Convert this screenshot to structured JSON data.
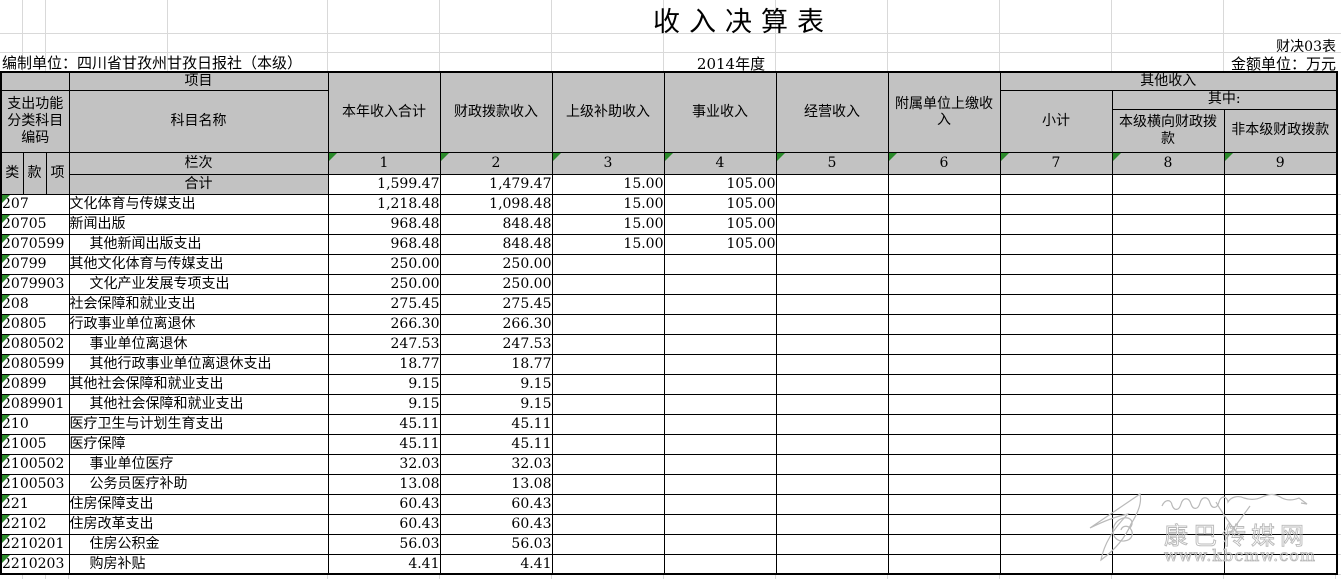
{
  "meta": {
    "title": "收入决算表",
    "form_no": "财决03表",
    "prepared_by": "编制单位：四川省甘孜州甘孜日报社（本级）",
    "year": "2014年度",
    "amount_unit": "金额单位：万元"
  },
  "header": {
    "project": "项目",
    "func_code": "支出功能分类科目编码",
    "subject": "科目名称",
    "income_cols": [
      "本年收入合计",
      "财政拨款收入",
      "上级补助收入",
      "事业收入",
      "经营收入",
      "附属单位上缴收入"
    ],
    "other_income": "其他收入",
    "among": "其中:",
    "subtotal": "小计",
    "lateral": "本级横向财政拨款",
    "nonlocal": "非本级财政拨款",
    "row_label": "栏次",
    "cls": "类",
    "sec": "款",
    "itm": "项",
    "col_nums": [
      "1",
      "2",
      "3",
      "4",
      "5",
      "6",
      "7",
      "8",
      "9"
    ],
    "total_label": "合计"
  },
  "totals": [
    "1,599.47",
    "1,479.47",
    "15.00",
    "105.00",
    "",
    "",
    "",
    "",
    ""
  ],
  "rows": [
    {
      "code": "207",
      "name": "文化体育与传媒支出",
      "indent": false,
      "values": [
        "1,218.48",
        "1,098.48",
        "15.00",
        "105.00",
        "",
        "",
        "",
        "",
        ""
      ]
    },
    {
      "code": "20705",
      "name": "新闻出版",
      "indent": false,
      "values": [
        "968.48",
        "848.48",
        "15.00",
        "105.00",
        "",
        "",
        "",
        "",
        ""
      ]
    },
    {
      "code": "2070599",
      "name": "其他新闻出版支出",
      "indent": true,
      "values": [
        "968.48",
        "848.48",
        "15.00",
        "105.00",
        "",
        "",
        "",
        "",
        ""
      ]
    },
    {
      "code": "20799",
      "name": "其他文化体育与传媒支出",
      "indent": false,
      "values": [
        "250.00",
        "250.00",
        "",
        "",
        "",
        "",
        "",
        "",
        ""
      ]
    },
    {
      "code": "2079903",
      "name": "文化产业发展专项支出",
      "indent": true,
      "values": [
        "250.00",
        "250.00",
        "",
        "",
        "",
        "",
        "",
        "",
        ""
      ]
    },
    {
      "code": "208",
      "name": "社会保障和就业支出",
      "indent": false,
      "values": [
        "275.45",
        "275.45",
        "",
        "",
        "",
        "",
        "",
        "",
        ""
      ]
    },
    {
      "code": "20805",
      "name": "行政事业单位离退休",
      "indent": false,
      "values": [
        "266.30",
        "266.30",
        "",
        "",
        "",
        "",
        "",
        "",
        ""
      ]
    },
    {
      "code": "2080502",
      "name": "事业单位离退休",
      "indent": true,
      "values": [
        "247.53",
        "247.53",
        "",
        "",
        "",
        "",
        "",
        "",
        ""
      ]
    },
    {
      "code": "2080599",
      "name": "其他行政事业单位离退休支出",
      "indent": true,
      "values": [
        "18.77",
        "18.77",
        "",
        "",
        "",
        "",
        "",
        "",
        ""
      ]
    },
    {
      "code": "20899",
      "name": "其他社会保障和就业支出",
      "indent": false,
      "values": [
        "9.15",
        "9.15",
        "",
        "",
        "",
        "",
        "",
        "",
        ""
      ]
    },
    {
      "code": "2089901",
      "name": "其他社会保障和就业支出",
      "indent": true,
      "values": [
        "9.15",
        "9.15",
        "",
        "",
        "",
        "",
        "",
        "",
        ""
      ]
    },
    {
      "code": "210",
      "name": "医疗卫生与计划生育支出",
      "indent": false,
      "values": [
        "45.11",
        "45.11",
        "",
        "",
        "",
        "",
        "",
        "",
        ""
      ]
    },
    {
      "code": "21005",
      "name": "医疗保障",
      "indent": false,
      "values": [
        "45.11",
        "45.11",
        "",
        "",
        "",
        "",
        "",
        "",
        ""
      ]
    },
    {
      "code": "2100502",
      "name": "事业单位医疗",
      "indent": true,
      "values": [
        "32.03",
        "32.03",
        "",
        "",
        "",
        "",
        "",
        "",
        ""
      ]
    },
    {
      "code": "2100503",
      "name": "公务员医疗补助",
      "indent": true,
      "values": [
        "13.08",
        "13.08",
        "",
        "",
        "",
        "",
        "",
        "",
        ""
      ]
    },
    {
      "code": "221",
      "name": "住房保障支出",
      "indent": false,
      "values": [
        "60.43",
        "60.43",
        "",
        "",
        "",
        "",
        "",
        "",
        ""
      ]
    },
    {
      "code": "22102",
      "name": "住房改革支出",
      "indent": false,
      "values": [
        "60.43",
        "60.43",
        "",
        "",
        "",
        "",
        "",
        "",
        ""
      ]
    },
    {
      "code": "2210201",
      "name": "住房公积金",
      "indent": true,
      "values": [
        "56.03",
        "56.03",
        "",
        "",
        "",
        "",
        "",
        "",
        ""
      ]
    },
    {
      "code": "2210203",
      "name": "购房补贴",
      "indent": true,
      "values": [
        "4.41",
        "4.41",
        "",
        "",
        "",
        "",
        "",
        "",
        ""
      ]
    }
  ],
  "watermark": {
    "site_name": "康巴传媒网",
    "site_url": "www.kbcmw.com"
  },
  "colors": {
    "header_bg": "#c2c2c2",
    "border": "#000000",
    "marker_green": "#2a8a2a",
    "grid_light": "#d9d9d9",
    "watermark": "#b9b9b9"
  }
}
